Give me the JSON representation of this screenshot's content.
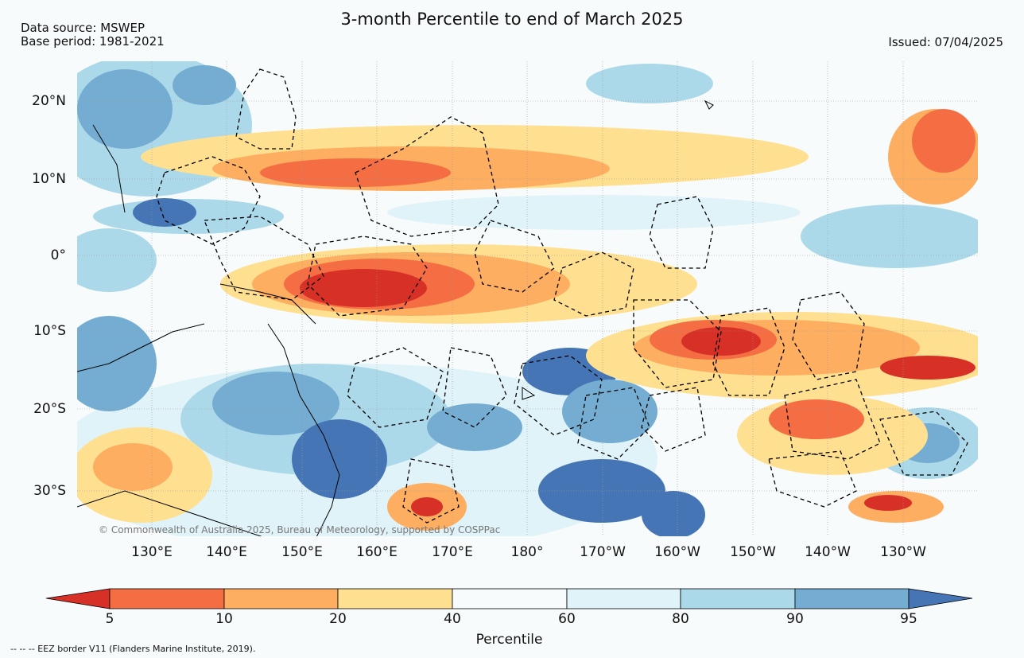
{
  "title": "3-month Percentile to end of March 2025",
  "data_source": "Data source: MSWEP",
  "base_period": "Base period: 1981-2021",
  "issued": "Issued: 07/04/2025",
  "copyright": "© Commonwealth of Australia 2025, Bureau of Meteorology, supported by COSPPac",
  "footnote": "-- -- -- EEZ border V11 (Flanders Marine Institute, 2019).",
  "lat_labels": [
    "20°N",
    "10°N",
    "0°",
    "10°S",
    "20°S",
    "30°S"
  ],
  "lon_labels": [
    "130°E",
    "140°E",
    "150°E",
    "160°E",
    "170°E",
    "180°",
    "170°W",
    "160°W",
    "150°W",
    "140°W",
    "130°W"
  ],
  "colorbar": {
    "label": "Percentile",
    "ticks": [
      "5",
      "10",
      "20",
      "40",
      "60",
      "80",
      "90",
      "95"
    ],
    "colors": [
      "#d73027",
      "#f46d43",
      "#fdae61",
      "#fee090",
      "#f7fbfb",
      "#e0f3f8",
      "#abd9e9",
      "#74add1",
      "#4575b4"
    ]
  },
  "colors": {
    "very_dry": "#d73027",
    "dry": "#f46d43",
    "below": "#fdae61",
    "slightly_below": "#fee090",
    "neutral": "#f7fbfb",
    "slightly_above": "#e0f3f8",
    "above": "#abd9e9",
    "wet": "#74add1",
    "very_wet": "#4575b4",
    "eez_border": "#000000"
  }
}
